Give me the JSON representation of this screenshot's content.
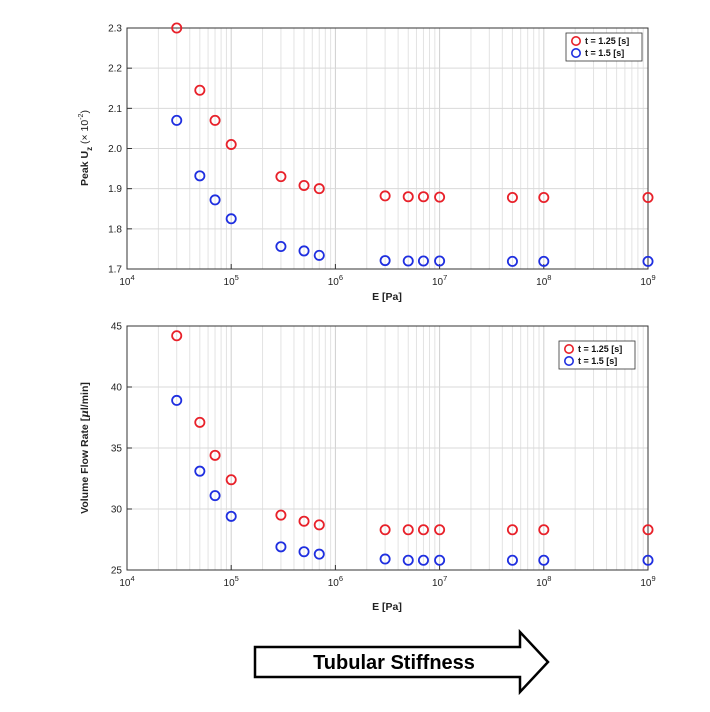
{
  "chart_data": [
    {
      "type": "scatter",
      "title": "",
      "xlabel": "E [Pa]",
      "ylabel_main": "Peak U",
      "ylabel_sub": "z",
      "ylabel_unit": " (× 10",
      "ylabel_exp": "-2",
      "ylabel_close": ")",
      "xscale": "log",
      "xlim": [
        10000,
        1000000000
      ],
      "ylim": [
        1.7,
        2.3
      ],
      "yticks": [
        "1.7",
        "1.8",
        "1.9",
        "2.0",
        "2.1",
        "2.2",
        "2.3"
      ],
      "xticks": [
        {
          "base": "10",
          "exp": "4"
        },
        {
          "base": "10",
          "exp": "5"
        },
        {
          "base": "10",
          "exp": "6"
        },
        {
          "base": "10",
          "exp": "7"
        },
        {
          "base": "10",
          "exp": "8"
        },
        {
          "base": "10",
          "exp": "9"
        }
      ],
      "grid": true,
      "legend_position": "top-right",
      "x": [
        30000,
        50000,
        70000,
        100000,
        300000,
        500000,
        700000,
        3000000,
        5000000,
        7000000,
        10000000,
        50000000,
        100000000,
        1000000000
      ],
      "series": [
        {
          "name": "t = 1.25 [s]",
          "color": "#e8212a",
          "values": [
            2.3,
            2.145,
            2.07,
            2.01,
            1.93,
            1.908,
            1.9,
            1.882,
            1.88,
            1.88,
            1.879,
            1.878,
            1.878,
            1.878
          ]
        },
        {
          "name": "t = 1.5 [s]",
          "color": "#1f2fe0",
          "values": [
            2.07,
            1.932,
            1.872,
            1.825,
            1.756,
            1.745,
            1.734,
            1.721,
            1.72,
            1.72,
            1.72,
            1.719,
            1.719,
            1.719
          ]
        }
      ]
    },
    {
      "type": "scatter",
      "title": "",
      "xlabel": "E [Pa]",
      "ylabel_main": "Volume Flow Rate [",
      "ylabel_mu": "μ",
      "ylabel_rest": "l/min]",
      "xscale": "log",
      "xlim": [
        10000,
        1000000000
      ],
      "ylim": [
        25,
        45
      ],
      "yticks": [
        "25",
        "30",
        "35",
        "40",
        "45"
      ],
      "xticks": [
        {
          "base": "10",
          "exp": "4"
        },
        {
          "base": "10",
          "exp": "5"
        },
        {
          "base": "10",
          "exp": "6"
        },
        {
          "base": "10",
          "exp": "7"
        },
        {
          "base": "10",
          "exp": "8"
        },
        {
          "base": "10",
          "exp": "9"
        }
      ],
      "grid": true,
      "legend_position": "top-right",
      "x": [
        30000,
        50000,
        70000,
        100000,
        300000,
        500000,
        700000,
        3000000,
        5000000,
        7000000,
        10000000,
        50000000,
        100000000,
        1000000000
      ],
      "series": [
        {
          "name": "t = 1.25 [s]",
          "color": "#e8212a",
          "values": [
            44.2,
            37.1,
            34.4,
            32.4,
            29.5,
            29.0,
            28.7,
            28.3,
            28.3,
            28.3,
            28.3,
            28.3,
            28.3,
            28.3
          ]
        },
        {
          "name": "t = 1.5 [s]",
          "color": "#1f2fe0",
          "values": [
            38.9,
            33.1,
            31.1,
            29.4,
            26.9,
            26.5,
            26.3,
            25.9,
            25.8,
            25.8,
            25.8,
            25.8,
            25.8,
            25.8
          ]
        }
      ]
    }
  ],
  "arrow": {
    "label": "Tubular Stiffness"
  }
}
